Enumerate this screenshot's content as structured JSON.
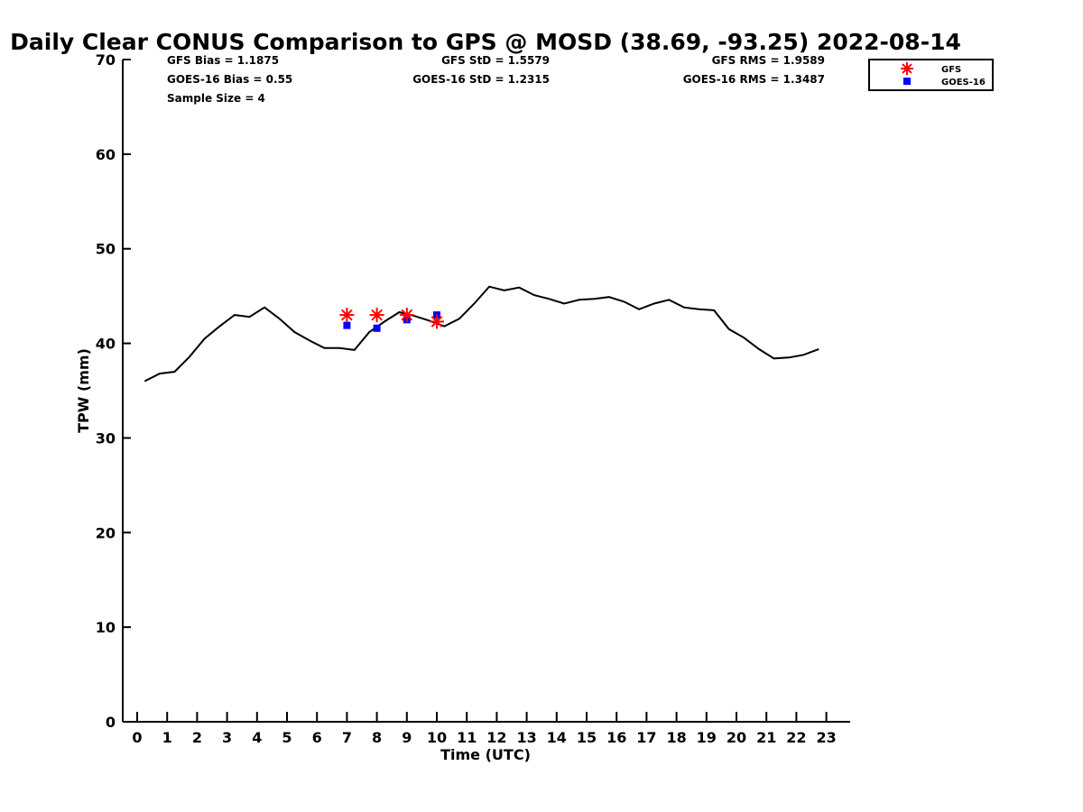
{
  "chart_data": {
    "type": "line",
    "title": "Daily Clear CONUS Comparison to GPS @ MOSD (38.69, -93.25) 2022-08-14",
    "xlabel": "Time (UTC)",
    "ylabel": "TPW (mm)",
    "xlim": [
      -0.5,
      23.8
    ],
    "ylim": [
      0,
      70
    ],
    "xticks": [
      0,
      1,
      2,
      3,
      4,
      5,
      6,
      7,
      8,
      9,
      10,
      11,
      12,
      13,
      14,
      15,
      16,
      17,
      18,
      19,
      20,
      21,
      22,
      23
    ],
    "yticks": [
      0,
      10,
      20,
      30,
      40,
      50,
      60,
      70
    ],
    "grid": false,
    "legend_position": "top-right",
    "series": [
      {
        "kind": "line",
        "color": "#000000",
        "x": [
          0.25,
          0.75,
          1.25,
          1.75,
          2.25,
          2.75,
          3.25,
          3.75,
          4.25,
          4.75,
          5.25,
          5.75,
          6.25,
          6.75,
          7.25,
          7.75,
          8.25,
          8.75,
          9.25,
          9.75,
          10.25,
          10.75,
          11.25,
          11.75,
          12.25,
          12.75,
          13.25,
          13.75,
          14.25,
          14.75,
          15.25,
          15.75,
          16.25,
          16.75,
          17.25,
          17.75,
          18.25,
          18.75,
          19.25,
          19.75,
          20.25,
          20.75,
          21.25,
          21.75,
          22.25,
          22.75
        ],
        "y": [
          36.0,
          36.8,
          37.0,
          38.6,
          40.5,
          41.8,
          43.0,
          42.8,
          43.8,
          42.6,
          41.2,
          40.3,
          39.5,
          39.5,
          39.3,
          41.2,
          42.3,
          43.3,
          42.9,
          42.4,
          41.8,
          42.6,
          44.2,
          46.0,
          45.6,
          45.9,
          45.1,
          44.7,
          44.2,
          44.6,
          44.7,
          44.9,
          44.4,
          43.6,
          44.2,
          44.6,
          43.8,
          43.6,
          43.5,
          41.5,
          40.6,
          39.4,
          38.4,
          38.5,
          38.8,
          39.4
        ]
      },
      {
        "name": "GFS",
        "kind": "scatter",
        "marker": "asterisk",
        "color": "#ff0000",
        "x": [
          7,
          8,
          9,
          10
        ],
        "y": [
          43.0,
          43.0,
          43.0,
          42.3
        ]
      },
      {
        "name": "GOES-16",
        "kind": "scatter",
        "marker": "square",
        "color": "#0000ff",
        "x": [
          7,
          8,
          9,
          10
        ],
        "y": [
          41.9,
          41.6,
          42.5,
          43.0
        ]
      }
    ],
    "annotations": {
      "gfs_bias": "GFS Bias = 1.1875",
      "goes_bias": "GOES-16 Bias = 0.55",
      "sample_size": "Sample Size = 4",
      "gfs_std": "GFS StD = 1.5579",
      "goes_std": "GOES-16 StD = 1.2315",
      "gfs_rms": "GFS RMS = 1.9589",
      "goes_rms": "GOES-16 RMS = 1.3487"
    }
  }
}
